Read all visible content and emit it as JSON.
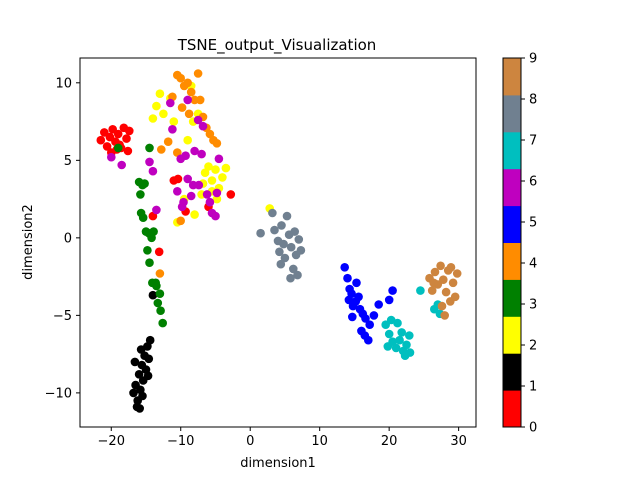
{
  "chart_data": {
    "type": "scatter",
    "title": "TSNE_output_Visualization",
    "xlabel": "dimension1",
    "ylabel": "dimension2",
    "xlim": [
      -24.5,
      32.5
    ],
    "ylim": [
      -12.2,
      11.6
    ],
    "xticks": [
      -20,
      -10,
      0,
      10,
      20,
      30
    ],
    "yticks": [
      -10,
      -5,
      0,
      5,
      10
    ],
    "grid": false,
    "colorbar": {
      "range": [
        0,
        9
      ],
      "ticks": [
        0,
        1,
        2,
        3,
        4,
        5,
        6,
        7,
        8,
        9
      ],
      "colors": [
        "#ff0000",
        "#000000",
        "#ffff00",
        "#008000",
        "#ff8c00",
        "#0000ff",
        "#bf00bf",
        "#00bfbf",
        "#708090",
        "#cd853f"
      ]
    },
    "series": [
      {
        "label": 0,
        "color": "#ff0000",
        "points": [
          [
            -21.5,
            6.3
          ],
          [
            -21.0,
            6.8
          ],
          [
            -20.6,
            5.9
          ],
          [
            -20.2,
            6.5
          ],
          [
            -19.8,
            7.0
          ],
          [
            -19.4,
            6.2
          ],
          [
            -19.0,
            6.7
          ],
          [
            -18.6,
            5.8
          ],
          [
            -18.2,
            7.1
          ],
          [
            -17.8,
            6.4
          ],
          [
            -17.6,
            5.6
          ],
          [
            -17.4,
            6.9
          ],
          [
            -20.0,
            5.5
          ],
          [
            -19.2,
            5.7
          ],
          [
            -18.8,
            6.0
          ],
          [
            -14.0,
            1.4
          ],
          [
            -13.1,
            -0.9
          ],
          [
            -11.0,
            3.7
          ],
          [
            -10.4,
            3.8
          ],
          [
            -9.3,
            1.7
          ],
          [
            -2.8,
            2.8
          ],
          [
            -6.0,
            2.0
          ]
        ]
      },
      {
        "label": 1,
        "color": "#000000",
        "points": [
          [
            -16.8,
            -10.0
          ],
          [
            -16.5,
            -9.5
          ],
          [
            -16.2,
            -10.5
          ],
          [
            -16.0,
            -8.8
          ],
          [
            -15.8,
            -9.8
          ],
          [
            -15.6,
            -8.2
          ],
          [
            -15.4,
            -9.2
          ],
          [
            -15.2,
            -7.6
          ],
          [
            -15.0,
            -8.5
          ],
          [
            -14.8,
            -7.0
          ],
          [
            -14.6,
            -7.8
          ],
          [
            -14.4,
            -6.6
          ],
          [
            -16.6,
            -8.0
          ],
          [
            -16.3,
            -10.9
          ],
          [
            -15.9,
            -11.0
          ],
          [
            -15.5,
            -10.2
          ],
          [
            -15.7,
            -7.2
          ],
          [
            -14.7,
            -8.9
          ],
          [
            -14.0,
            -3.7
          ]
        ]
      },
      {
        "label": 2,
        "color": "#ffff00",
        "points": [
          [
            -14.0,
            7.7
          ],
          [
            -13.5,
            8.5
          ],
          [
            -13.0,
            9.3
          ],
          [
            -12.5,
            8.0
          ],
          [
            -11.5,
            9.0
          ],
          [
            -11.0,
            7.5
          ],
          [
            -8.5,
            9.8
          ],
          [
            -9.0,
            6.3
          ],
          [
            -8.2,
            7.5
          ],
          [
            -7.5,
            8.0
          ],
          [
            -6.5,
            4.2
          ],
          [
            -6.0,
            4.6
          ],
          [
            -5.5,
            3.7
          ],
          [
            -5.0,
            4.4
          ],
          [
            -4.5,
            3.2
          ],
          [
            -4.0,
            3.9
          ],
          [
            -3.5,
            4.5
          ],
          [
            -10.5,
            1.0
          ],
          [
            -9.5,
            2.5
          ],
          [
            -7.0,
            2.8
          ],
          [
            -6.8,
            3.5
          ],
          [
            -8.0,
            1.5
          ],
          [
            -5.5,
            3.0
          ],
          [
            -4.8,
            2.5
          ],
          [
            2.8,
            1.9
          ]
        ]
      },
      {
        "label": 3,
        "color": "#008000",
        "points": [
          [
            -19.0,
            5.8
          ],
          [
            -16.0,
            3.6
          ],
          [
            -15.8,
            2.8
          ],
          [
            -15.5,
            3.4
          ],
          [
            -15.2,
            3.5
          ],
          [
            -15.7,
            1.6
          ],
          [
            -15.4,
            1.3
          ],
          [
            -15.0,
            0.4
          ],
          [
            -14.6,
            0.3
          ],
          [
            -14.2,
            0.0
          ],
          [
            -13.9,
            0.4
          ],
          [
            -14.8,
            -0.8
          ],
          [
            -14.5,
            -1.6
          ],
          [
            -14.1,
            -2.9
          ],
          [
            -13.5,
            -3.1
          ],
          [
            -13.0,
            -3.6
          ],
          [
            -13.3,
            -4.2
          ],
          [
            -12.9,
            -4.7
          ],
          [
            -12.6,
            -5.5
          ],
          [
            -14.5,
            5.8
          ],
          [
            -13.6,
            -2.9
          ]
        ]
      },
      {
        "label": 4,
        "color": "#ff8c00",
        "points": [
          [
            -11.8,
            6.2
          ],
          [
            -11.2,
            9.1
          ],
          [
            -10.5,
            10.5
          ],
          [
            -10.0,
            10.3
          ],
          [
            -9.5,
            9.8
          ],
          [
            -9.0,
            10.0
          ],
          [
            -8.5,
            9.4
          ],
          [
            -8.0,
            8.9
          ],
          [
            -7.5,
            10.6
          ],
          [
            -7.2,
            8.9
          ],
          [
            -6.8,
            7.8
          ],
          [
            -6.3,
            7.1
          ],
          [
            -5.8,
            6.7
          ],
          [
            -5.3,
            6.3
          ],
          [
            -4.8,
            6.1
          ],
          [
            -9.8,
            8.4
          ],
          [
            -10.5,
            5.5
          ],
          [
            -12.8,
            5.7
          ],
          [
            -13.0,
            -2.3
          ],
          [
            -10.0,
            1.1
          ],
          [
            -8.8,
            8.0
          ]
        ]
      },
      {
        "label": 5,
        "color": "#0000ff",
        "points": [
          [
            13.6,
            -1.9
          ],
          [
            14.0,
            -2.6
          ],
          [
            14.3,
            -3.3
          ],
          [
            14.6,
            -3.6
          ],
          [
            14.2,
            -4.0
          ],
          [
            14.8,
            -4.4
          ],
          [
            15.2,
            -4.1
          ],
          [
            15.6,
            -3.8
          ],
          [
            15.8,
            -4.6
          ],
          [
            16.2,
            -4.9
          ],
          [
            16.6,
            -5.2
          ],
          [
            16.0,
            -6.0
          ],
          [
            16.5,
            -6.3
          ],
          [
            17.0,
            -6.6
          ],
          [
            17.2,
            -5.6
          ],
          [
            17.8,
            -5.0
          ],
          [
            18.5,
            -4.3
          ],
          [
            20.0,
            -4.0
          ],
          [
            20.5,
            -3.4
          ],
          [
            14.7,
            -5.1
          ],
          [
            15.3,
            -2.9
          ]
        ]
      },
      {
        "label": 6,
        "color": "#bf00bf",
        "points": [
          [
            -20.0,
            5.2
          ],
          [
            -18.5,
            4.7
          ],
          [
            -14.5,
            4.9
          ],
          [
            -14.0,
            4.3
          ],
          [
            -13.5,
            1.8
          ],
          [
            -11.5,
            8.7
          ],
          [
            -11.2,
            7.0
          ],
          [
            -10.5,
            3.0
          ],
          [
            -9.6,
            2.3
          ],
          [
            -9.3,
            5.3
          ],
          [
            -9.0,
            3.8
          ],
          [
            -8.5,
            2.7
          ],
          [
            -8.2,
            3.4
          ],
          [
            -7.5,
            7.6
          ],
          [
            -7.0,
            5.4
          ],
          [
            -6.2,
            2.8
          ],
          [
            -5.8,
            2.3
          ],
          [
            -5.5,
            1.6
          ],
          [
            -5.0,
            1.4
          ],
          [
            -4.8,
            2.9
          ],
          [
            -4.5,
            5.1
          ],
          [
            -9.0,
            8.9
          ],
          [
            -8.0,
            5.6
          ],
          [
            -9.8,
            2.0
          ],
          [
            -6.8,
            7.2
          ],
          [
            -10.0,
            5.1
          ],
          [
            -7.4,
            3.4
          ]
        ]
      },
      {
        "label": 7,
        "color": "#00bfbf",
        "points": [
          [
            19.5,
            -5.6
          ],
          [
            20.0,
            -6.2
          ],
          [
            20.5,
            -6.7
          ],
          [
            21.0,
            -7.1
          ],
          [
            21.5,
            -6.6
          ],
          [
            22.0,
            -7.3
          ],
          [
            22.5,
            -6.9
          ],
          [
            23.0,
            -7.4
          ],
          [
            21.2,
            -5.5
          ],
          [
            21.8,
            -6.1
          ],
          [
            22.3,
            -7.6
          ],
          [
            20.3,
            -5.3
          ],
          [
            19.8,
            -7.0
          ],
          [
            26.5,
            -4.6
          ],
          [
            27.0,
            -4.3
          ],
          [
            24.5,
            -3.4
          ],
          [
            27.3,
            -4.9
          ],
          [
            22.9,
            -6.3
          ]
        ]
      },
      {
        "label": 8,
        "color": "#708090",
        "points": [
          [
            1.5,
            0.3
          ],
          [
            3.2,
            1.6
          ],
          [
            3.5,
            0.5
          ],
          [
            4.0,
            -0.2
          ],
          [
            4.2,
            -0.9
          ],
          [
            4.5,
            0.8
          ],
          [
            4.8,
            -0.4
          ],
          [
            5.0,
            -1.3
          ],
          [
            5.3,
            1.4
          ],
          [
            5.6,
            0.2
          ],
          [
            5.9,
            -0.6
          ],
          [
            6.2,
            -2.0
          ],
          [
            6.4,
            0.4
          ],
          [
            6.6,
            -1.1
          ],
          [
            6.8,
            -2.4
          ],
          [
            7.0,
            -0.1
          ],
          [
            7.3,
            -0.8
          ],
          [
            5.8,
            -2.6
          ],
          [
            4.4,
            -1.7
          ]
        ]
      },
      {
        "label": 9,
        "color": "#cd853f",
        "points": [
          [
            25.8,
            -2.6
          ],
          [
            26.2,
            -3.4
          ],
          [
            26.6,
            -2.2
          ],
          [
            27.0,
            -3.0
          ],
          [
            27.4,
            -1.8
          ],
          [
            27.8,
            -2.7
          ],
          [
            28.2,
            -3.5
          ],
          [
            28.5,
            -2.1
          ],
          [
            28.8,
            -4.1
          ],
          [
            29.2,
            -2.9
          ],
          [
            29.5,
            -3.8
          ],
          [
            29.8,
            -2.3
          ],
          [
            27.6,
            -4.4
          ],
          [
            28.0,
            -5.0
          ],
          [
            28.9,
            -1.9
          ],
          [
            26.4,
            -2.9
          ]
        ]
      }
    ]
  }
}
